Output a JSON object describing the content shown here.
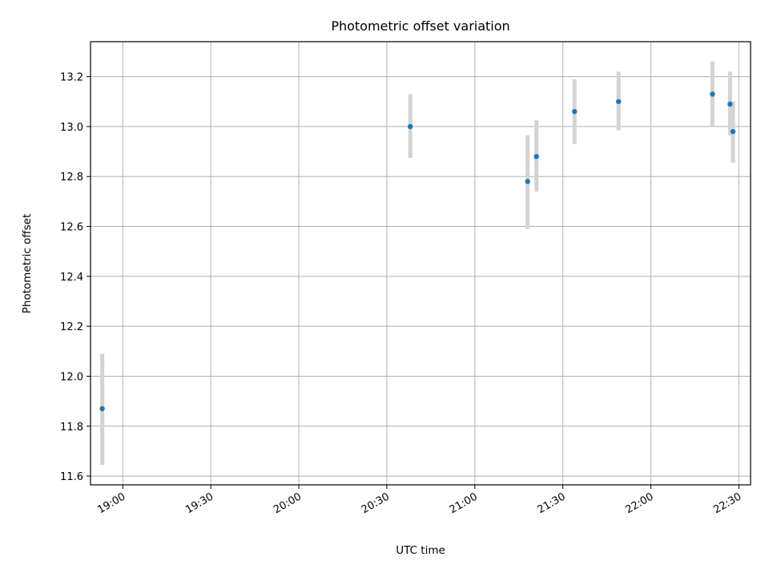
{
  "chart_data": {
    "type": "scatter",
    "title": "Photometric offset variation",
    "xlabel": "UTC time",
    "ylabel": "Photometric offset",
    "x_ticks": [
      "19:00",
      "19:30",
      "20:00",
      "20:30",
      "21:00",
      "21:30",
      "22:00",
      "22:30"
    ],
    "y_ticks": [
      "11.6",
      "11.8",
      "12.0",
      "12.2",
      "12.4",
      "12.6",
      "12.8",
      "13.0",
      "13.2"
    ],
    "xlim": [
      "18:49",
      "22:34"
    ],
    "ylim": [
      11.565,
      13.34
    ],
    "grid": true,
    "series": [
      {
        "points": [
          {
            "time": "18:53",
            "y": 11.87,
            "err_low": 11.645,
            "err_high": 12.09
          },
          {
            "time": "20:38",
            "y": 13.0,
            "err_low": 12.875,
            "err_high": 13.13
          },
          {
            "time": "21:18",
            "y": 12.78,
            "err_low": 12.59,
            "err_high": 12.965
          },
          {
            "time": "21:21",
            "y": 12.88,
            "err_low": 12.74,
            "err_high": 13.025
          },
          {
            "time": "21:34",
            "y": 13.06,
            "err_low": 12.93,
            "err_high": 13.19
          },
          {
            "time": "21:49",
            "y": 13.1,
            "err_low": 12.985,
            "err_high": 13.22
          },
          {
            "time": "22:21",
            "y": 13.13,
            "err_low": 13.0,
            "err_high": 13.26
          },
          {
            "time": "22:27",
            "y": 13.09,
            "err_low": 12.965,
            "err_high": 13.22
          },
          {
            "time": "22:28",
            "y": 12.98,
            "err_low": 12.855,
            "err_high": 13.1
          }
        ]
      }
    ],
    "colors": {
      "point": "#1f77b4",
      "errorbar": "#d3d3d3",
      "grid": "#b0b0b0",
      "axis": "#000000"
    }
  }
}
